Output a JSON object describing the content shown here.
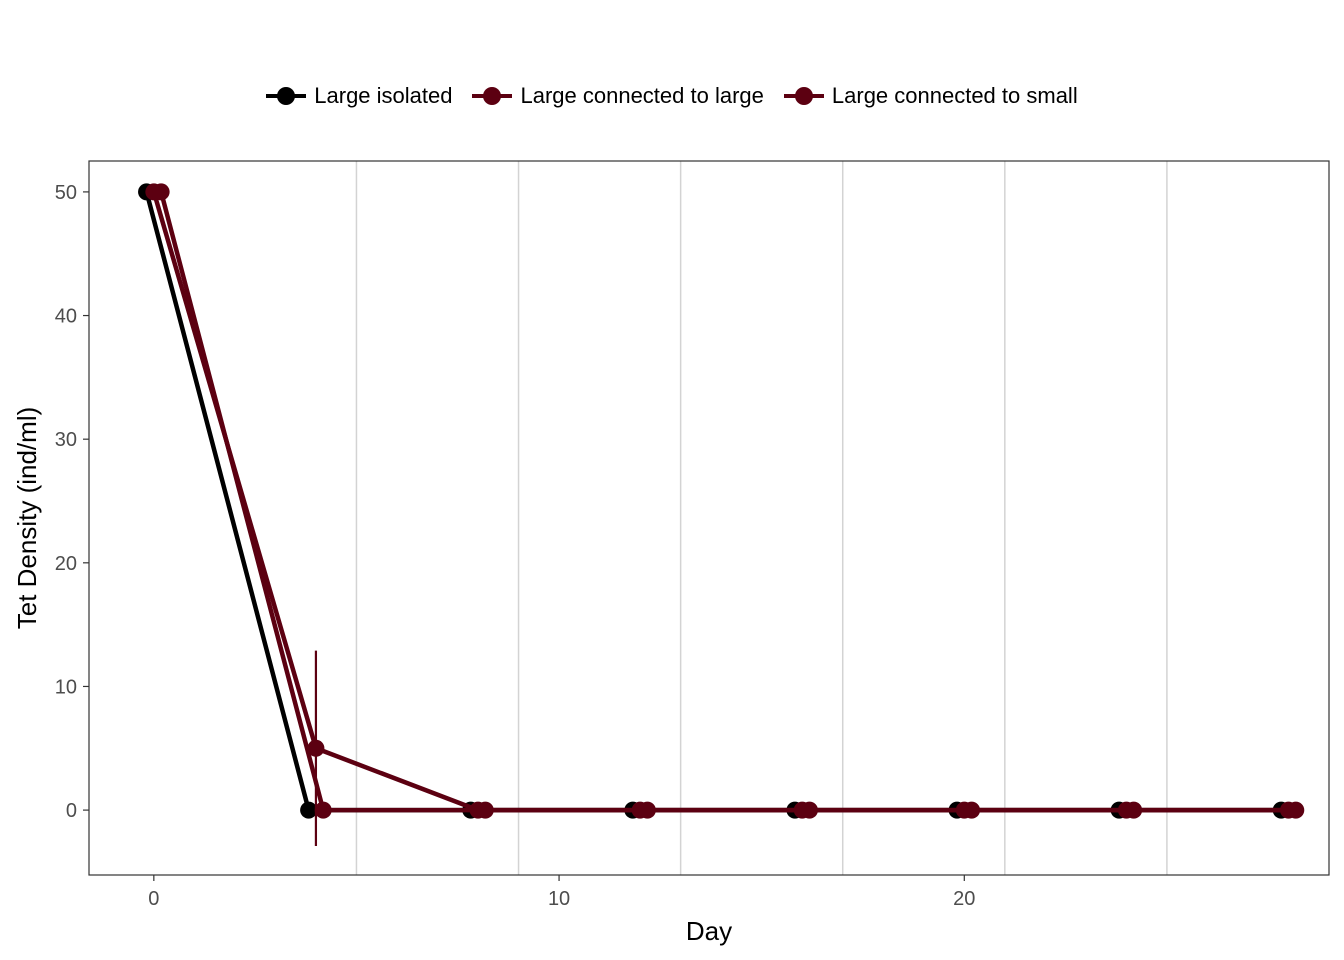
{
  "chart_data": {
    "type": "line",
    "xlabel": "Day",
    "ylabel": "Tet Density (ind/ml)",
    "xlim": [
      -1.6,
      29
    ],
    "ylim": [
      -5.25,
      52.5
    ],
    "x_ticks": [
      0,
      10,
      20
    ],
    "y_ticks": [
      0,
      10,
      20,
      30,
      40,
      50
    ],
    "x_gridlines": [
      5,
      9,
      13,
      17,
      21,
      25
    ],
    "grid": "vertical only",
    "legend_position": "top",
    "series": [
      {
        "name": "Large isolated",
        "color": "#000000",
        "x": [
          0,
          4,
          8,
          12,
          16,
          20,
          24,
          28
        ],
        "y": [
          50,
          0,
          0,
          0,
          0,
          0,
          0,
          0
        ],
        "error": [
          0,
          0,
          0,
          0,
          0,
          0,
          0,
          0
        ]
      },
      {
        "name": "Large connected to large",
        "color": "#5c0011",
        "x": [
          0,
          4,
          8,
          12,
          16,
          20,
          24,
          28
        ],
        "y": [
          50,
          5,
          0,
          0,
          0,
          0,
          0,
          0
        ],
        "error": [
          0,
          7.9,
          0,
          0,
          0,
          0,
          0,
          0
        ]
      },
      {
        "name": "Large connected to small",
        "color": "#5c0011",
        "x": [
          0,
          4,
          8,
          12,
          16,
          20,
          24,
          28
        ],
        "y": [
          50,
          0,
          0,
          0,
          0,
          0,
          0,
          0
        ],
        "error": [
          0,
          0,
          0,
          0,
          0,
          0,
          0,
          0
        ]
      }
    ]
  }
}
